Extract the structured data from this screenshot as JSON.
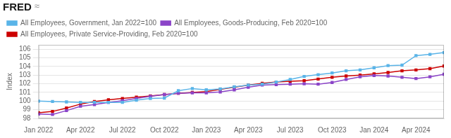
{
  "chart_data": {
    "type": "line",
    "ylabel": "Index",
    "annotations": [
      "FRED",
      "≈"
    ],
    "legend": "upper left",
    "grid": true,
    "categories": [
      "Jan 2022",
      null,
      null,
      "Apr 2022",
      null,
      null,
      "Jul 2022",
      null,
      null,
      "Oct 2022",
      null,
      null,
      "Jan 2023",
      null,
      null,
      "Apr 2023",
      null,
      null,
      "Jul 2023",
      null,
      null,
      "Oct 2023",
      null,
      null,
      "Jan 2024",
      null,
      null,
      "Apr 2024",
      null,
      null
    ],
    "series": [
      {
        "name": "All Employees, Government, Jan 2022=100",
        "color": "#5ab4e8",
        "marker": "square",
        "values": [
          100.0,
          99.95,
          99.9,
          99.85,
          99.85,
          99.85,
          99.85,
          100.1,
          100.3,
          100.35,
          101.2,
          101.45,
          101.3,
          101.4,
          101.65,
          101.85,
          101.95,
          102.2,
          102.5,
          102.85,
          103.05,
          103.25,
          103.5,
          103.6,
          103.85,
          104.1,
          104.15,
          105.25,
          105.4,
          105.6
        ]
      },
      {
        "name": "All Employees, Goods-Producing, Feb 2020=100",
        "color": "#8b44c8",
        "marker": "square",
        "values": [
          98.5,
          98.45,
          98.9,
          99.4,
          99.6,
          99.85,
          100.05,
          100.3,
          100.55,
          100.75,
          100.9,
          100.95,
          100.95,
          101.05,
          101.3,
          101.6,
          101.85,
          101.9,
          101.95,
          102.0,
          101.95,
          102.15,
          102.5,
          102.8,
          102.95,
          102.9,
          102.75,
          102.6,
          102.8,
          103.1
        ]
      },
      {
        "name": "All Employees, Private Service-Providing, Feb 2020=100",
        "color": "#cc0000",
        "marker": "square",
        "values": [
          98.65,
          98.8,
          99.2,
          99.65,
          99.95,
          100.15,
          100.3,
          100.45,
          100.6,
          100.75,
          100.9,
          101.0,
          101.1,
          101.35,
          101.6,
          101.85,
          102.05,
          102.2,
          102.3,
          102.35,
          102.55,
          102.75,
          102.9,
          103.0,
          103.15,
          103.3,
          103.5,
          103.6,
          103.75,
          104.05
        ]
      }
    ],
    "ylim": [
      98.0,
      106.5
    ],
    "yticks": [
      98,
      99,
      100,
      101,
      102,
      103,
      104,
      105,
      106
    ]
  }
}
